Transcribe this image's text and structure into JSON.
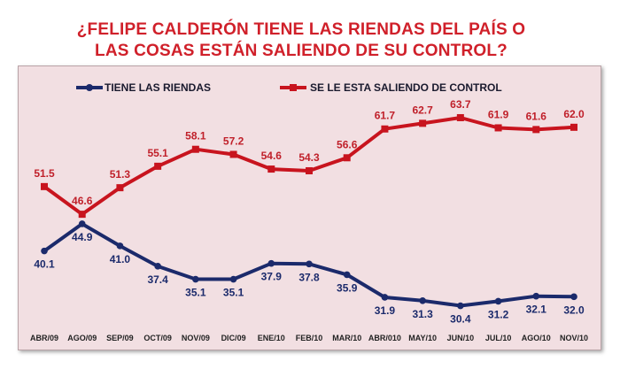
{
  "title": {
    "line1": "¿FELIPE CALDERÓN TIENE LAS RIENDAS DEL PAÍS O",
    "line2": "LAS COSAS ESTÁN SALIENDO DE SU CONTROL?"
  },
  "colors": {
    "red_series": "#c8141e",
    "blue_series": "#1b2a6b",
    "panel_bg": "#f2dfe2"
  },
  "chart_data": {
    "type": "line",
    "title": "¿FELIPE CALDERÓN TIENE LAS RIENDAS DEL PAÍS O LAS COSAS ESTÁN SALIENDO DE SU CONTROL?",
    "categories": [
      "ABR/09",
      "AGO/09",
      "SEP/09",
      "OCT/09",
      "NOV/09",
      "DIC/09",
      "ENE/10",
      "FEB/10",
      "MAR/10",
      "ABR/010",
      "MAY/10",
      "JUN/10",
      "JUL/10",
      "AGO/10",
      "NOV/10"
    ],
    "series": [
      {
        "name": "TIENE LAS RIENDAS",
        "values": [
          40.1,
          44.9,
          41.0,
          37.4,
          35.1,
          35.1,
          37.9,
          37.8,
          35.9,
          31.9,
          31.3,
          30.4,
          31.2,
          32.1,
          32.0
        ],
        "labels": [
          "40.1",
          "44.9",
          "41.0",
          "37.4",
          "35.1",
          "35.1",
          "37.9",
          "37.8",
          "35.9",
          "31.9",
          "31.3",
          "30.4",
          "31.2",
          "32.1",
          "32.0"
        ]
      },
      {
        "name": "SE LE ESTA SALIENDO DE CONTROL",
        "values": [
          51.5,
          46.6,
          51.3,
          55.1,
          58.1,
          57.2,
          54.6,
          54.3,
          56.6,
          61.7,
          62.7,
          63.7,
          61.9,
          61.6,
          62.0
        ],
        "labels": [
          "51.5",
          "46.6",
          "51.3",
          "55.1",
          "58.1",
          "57.2",
          "54.6",
          "54.3",
          "56.6",
          "61.7",
          "62.7",
          "63.7",
          "61.9",
          "61.6",
          "62.0"
        ]
      }
    ],
    "legend_position": "top",
    "grid": false,
    "ylim": [
      25,
      72
    ]
  }
}
